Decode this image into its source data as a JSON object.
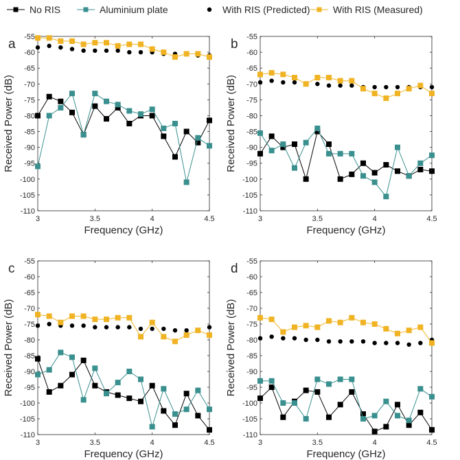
{
  "legend": [
    {
      "label": "No RIS",
      "color": "#000000",
      "marker": "square",
      "line": true
    },
    {
      "label": "Aluminium plate",
      "color": "#3a8f8f",
      "marker": "square",
      "line": true
    },
    {
      "label": "With RIS (Predicted)",
      "color": "#000000",
      "marker": "circle",
      "line": false
    },
    {
      "label": "With RIS (Measured)",
      "color": "#f0b323",
      "marker": "square",
      "line": true
    }
  ],
  "chart_data": [
    {
      "type": "line",
      "panel_label": "a",
      "xlabel": "Frequency (GHz)",
      "ylabel": "Received Power (dB)",
      "xlim": [
        3,
        4.5
      ],
      "ylim": [
        -110,
        -55
      ],
      "xticks": [
        "3",
        "3.5",
        "4",
        "4.5"
      ],
      "yticks": [
        "-55",
        "-60",
        "-65",
        "-70",
        "-75",
        "-80",
        "-85",
        "-90",
        "-95",
        "-100",
        "-105",
        "-110"
      ],
      "x": [
        3.0,
        3.1,
        3.2,
        3.3,
        3.4,
        3.5,
        3.6,
        3.7,
        3.8,
        3.9,
        4.0,
        4.1,
        4.2,
        4.3,
        4.4,
        4.5
      ],
      "series": [
        {
          "name": "No RIS",
          "values": [
            -80,
            -74,
            -75.5,
            -79,
            -86,
            -77,
            -81,
            -77.5,
            -82.5,
            -80,
            -80,
            -86.5,
            -93,
            -85,
            -88.5,
            -81.5
          ]
        },
        {
          "name": "Aluminium plate",
          "values": [
            -96,
            -80,
            -77.5,
            -73,
            -86,
            -73,
            -75.5,
            -76.5,
            -78.5,
            -79.5,
            -78,
            -84,
            -82.5,
            -101,
            -87,
            -89.5
          ]
        },
        {
          "name": "With RIS (Predicted)",
          "values": [
            -58.5,
            -58,
            -58.5,
            -59,
            -59.5,
            -59.5,
            -59.5,
            -59.5,
            -60,
            -60,
            -60,
            -60.5,
            -60.5,
            -60.5,
            -61,
            -61
          ]
        },
        {
          "name": "With RIS (Measured)",
          "values": [
            -55.5,
            -55.5,
            -56.5,
            -56.5,
            -57.5,
            -57,
            -57,
            -58,
            -57.5,
            -57.5,
            -59,
            -60,
            -61.5,
            -60.5,
            -60.5,
            -61.5
          ]
        }
      ]
    },
    {
      "type": "line",
      "panel_label": "b",
      "xlabel": "Frequency (GHz)",
      "ylabel": "Received Power (dB)",
      "xlim": [
        3,
        4.5
      ],
      "ylim": [
        -110,
        -55
      ],
      "xticks": [
        "3",
        "3.5",
        "4",
        "4.5"
      ],
      "yticks": [
        "-55",
        "-60",
        "-65",
        "-70",
        "-75",
        "-80",
        "-85",
        "-90",
        "-95",
        "-100",
        "-105",
        "-110"
      ],
      "x": [
        3.0,
        3.1,
        3.2,
        3.3,
        3.4,
        3.5,
        3.6,
        3.7,
        3.8,
        3.9,
        4.0,
        4.1,
        4.2,
        4.3,
        4.4,
        4.5
      ],
      "series": [
        {
          "name": "No RIS",
          "values": [
            -92,
            -86.5,
            -90,
            -89,
            -100,
            -85,
            -89,
            -100,
            -98.5,
            -95,
            -98,
            -95.5,
            -97.5,
            -99,
            -97,
            -97.5
          ]
        },
        {
          "name": "Aluminium plate",
          "values": [
            -85.5,
            -91,
            -89,
            -96.5,
            -88.5,
            -84,
            -92,
            -92,
            -92,
            -99,
            -101,
            -105.5,
            -90,
            -99,
            -95,
            -92.5
          ]
        },
        {
          "name": "With RIS (Predicted)",
          "values": [
            -69.5,
            -69,
            -69.5,
            -69.5,
            -70,
            -70,
            -70.5,
            -70.5,
            -70.5,
            -71,
            -71,
            -71,
            -71,
            -71,
            -71,
            -71
          ]
        },
        {
          "name": "With RIS (Measured)",
          "values": [
            -67,
            -66.5,
            -67,
            -68,
            -70,
            -68,
            -68,
            -69,
            -69,
            -71.5,
            -73,
            -74.5,
            -73,
            -71.5,
            -70.5,
            -73
          ]
        }
      ]
    },
    {
      "type": "line",
      "panel_label": "c",
      "xlabel": "Frequency (GHz)",
      "ylabel": "Received Power (dB)",
      "xlim": [
        3,
        4.5
      ],
      "ylim": [
        -110,
        -55
      ],
      "xticks": [
        "3",
        "3.5",
        "4",
        "4.5"
      ],
      "yticks": [
        "-55",
        "-60",
        "-65",
        "-70",
        "-75",
        "-80",
        "-85",
        "-90",
        "-95",
        "-100",
        "-105",
        "-110"
      ],
      "x": [
        3.0,
        3.1,
        3.2,
        3.3,
        3.4,
        3.5,
        3.6,
        3.7,
        3.8,
        3.9,
        4.0,
        4.1,
        4.2,
        4.3,
        4.4,
        4.5
      ],
      "series": [
        {
          "name": "No RIS",
          "values": [
            -86,
            -96.5,
            -94.5,
            -91,
            -86.5,
            -94.5,
            -96.5,
            -97.5,
            -98.5,
            -99.5,
            -94.5,
            -102.5,
            -107,
            -97,
            -104,
            -108.5
          ]
        },
        {
          "name": "Aluminium plate",
          "values": [
            -91,
            -89.5,
            -84,
            -85.5,
            -99,
            -89,
            -97,
            -93.5,
            -90,
            -92.5,
            -107.5,
            -95.5,
            -103.5,
            -102,
            -96,
            -102
          ]
        },
        {
          "name": "With RIS (Predicted)",
          "values": [
            -75.5,
            -75,
            -75.5,
            -75.5,
            -75.5,
            -76,
            -76,
            -76,
            -76,
            -76.5,
            -76.5,
            -76.5,
            -77,
            -77,
            -77,
            -76
          ]
        },
        {
          "name": "With RIS (Measured)",
          "values": [
            -72,
            -72.5,
            -74.5,
            -72.5,
            -72.5,
            -73.5,
            -73.5,
            -73,
            -73,
            -79,
            -74.5,
            -79,
            -80.5,
            -78.5,
            -77,
            -78.5
          ]
        }
      ]
    },
    {
      "type": "line",
      "panel_label": "d",
      "xlabel": "Frequency (GHz)",
      "ylabel": "Received Power (dB)",
      "xlim": [
        3,
        4.5
      ],
      "ylim": [
        -110,
        -55
      ],
      "xticks": [
        "3",
        "3.5",
        "4",
        "4.5"
      ],
      "yticks": [
        "-55",
        "-60",
        "-65",
        "-70",
        "-75",
        "-80",
        "-85",
        "-90",
        "-95",
        "-100",
        "-105",
        "-110"
      ],
      "x": [
        3.0,
        3.1,
        3.2,
        3.3,
        3.4,
        3.5,
        3.6,
        3.7,
        3.8,
        3.9,
        4.0,
        4.1,
        4.2,
        4.3,
        4.4,
        4.5
      ],
      "series": [
        {
          "name": "No RIS",
          "values": [
            -98.5,
            -95,
            -104.5,
            -99.5,
            -96,
            -96.5,
            -104.5,
            -100.5,
            -96.5,
            -103.5,
            -109,
            -107.5,
            -100.5,
            -107,
            -103,
            -108.5
          ]
        },
        {
          "name": "Aluminium plate",
          "values": [
            -93,
            -93,
            -100,
            -100,
            -105,
            -92.5,
            -94,
            -92.5,
            -92.5,
            -105,
            -104,
            -99.5,
            -104,
            -105.5,
            -95.5,
            -98
          ]
        },
        {
          "name": "With RIS (Predicted)",
          "values": [
            -79.5,
            -79,
            -79.5,
            -79.5,
            -80,
            -80,
            -80.5,
            -80.5,
            -80.5,
            -80.5,
            -81,
            -81,
            -81,
            -81.5,
            -81,
            -80
          ]
        },
        {
          "name": "With RIS (Measured)",
          "values": [
            -73,
            -73.5,
            -77.5,
            -76,
            -75.5,
            -76,
            -74,
            -74.5,
            -73,
            -74.5,
            -75,
            -76.5,
            -78,
            -77,
            -76,
            -81
          ]
        }
      ]
    }
  ]
}
